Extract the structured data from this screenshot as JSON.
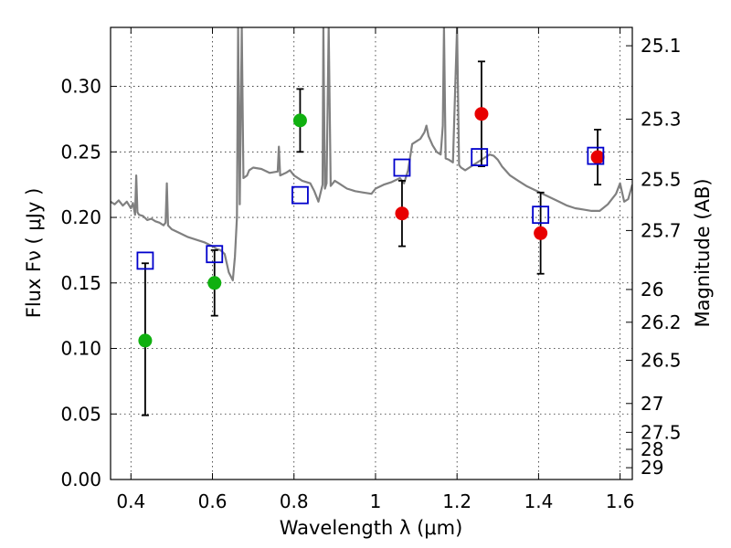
{
  "chart_data": {
    "type": "scatter",
    "xlabel": "Wavelength  λ (μm)",
    "ylabel": "Flux  Fν  ( μJy )",
    "ylabel_right": "Magnitude (AB)",
    "xlim": [
      0.35,
      1.63
    ],
    "ylim": [
      0.0,
      0.345
    ],
    "x_ticks": [
      0.4,
      0.6,
      0.8,
      1.0,
      1.2,
      1.4,
      1.6
    ],
    "x_tick_labels": [
      "0.4",
      "0.6",
      "0.8",
      "1",
      "1.2",
      "1.4",
      "1.6"
    ],
    "y_ticks": [
      0.0,
      0.05,
      0.1,
      0.15,
      0.2,
      0.25,
      0.3
    ],
    "y_tick_labels": [
      "0.00",
      "0.05",
      "0.10",
      "0.15",
      "0.20",
      "0.25",
      "0.30"
    ],
    "mag_ticks": [
      {
        "label": "25.1",
        "flux": 0.331
      },
      {
        "label": "25.3",
        "flux": 0.275
      },
      {
        "label": "25.5",
        "flux": 0.229
      },
      {
        "label": "25.7",
        "flux": 0.19
      },
      {
        "label": "26",
        "flux": 0.145
      },
      {
        "label": "26.2",
        "flux": 0.12
      },
      {
        "label": "26.5",
        "flux": 0.091
      },
      {
        "label": "27",
        "flux": 0.058
      },
      {
        "label": "27.5",
        "flux": 0.036
      },
      {
        "label": "28",
        "flux": 0.023
      },
      {
        "label": "29",
        "flux": 0.009
      }
    ],
    "grid": true,
    "colors": {
      "model": "#808080",
      "green": "#10b010",
      "red": "#e80000",
      "square": "#0000cc",
      "errorbar": "#000000"
    },
    "series": [
      {
        "name": "green-detections",
        "marker": "circle",
        "color": "green",
        "points": [
          {
            "x": 0.435,
            "y": 0.106,
            "yerr_lo": 0.049,
            "yerr_hi": 0.165
          },
          {
            "x": 0.605,
            "y": 0.15,
            "yerr_lo": 0.125,
            "yerr_hi": 0.175
          },
          {
            "x": 0.815,
            "y": 0.274,
            "yerr_lo": 0.25,
            "yerr_hi": 0.298
          }
        ]
      },
      {
        "name": "red-detections",
        "marker": "circle",
        "color": "red",
        "points": [
          {
            "x": 1.065,
            "y": 0.203,
            "yerr_lo": 0.178,
            "yerr_hi": 0.228
          },
          {
            "x": 1.26,
            "y": 0.279,
            "yerr_lo": 0.239,
            "yerr_hi": 0.319
          },
          {
            "x": 1.405,
            "y": 0.188,
            "yerr_lo": 0.157,
            "yerr_hi": 0.219
          },
          {
            "x": 1.545,
            "y": 0.246,
            "yerr_lo": 0.225,
            "yerr_hi": 0.267
          }
        ]
      },
      {
        "name": "model-photometry",
        "marker": "square",
        "color": "square",
        "points": [
          {
            "x": 0.435,
            "y": 0.167
          },
          {
            "x": 0.605,
            "y": 0.172
          },
          {
            "x": 0.815,
            "y": 0.217
          },
          {
            "x": 1.065,
            "y": 0.238
          },
          {
            "x": 1.255,
            "y": 0.246
          },
          {
            "x": 1.405,
            "y": 0.202
          },
          {
            "x": 1.54,
            "y": 0.247
          }
        ]
      }
    ],
    "model_spectrum": [
      [
        0.35,
        0.212
      ],
      [
        0.36,
        0.21
      ],
      [
        0.37,
        0.213
      ],
      [
        0.38,
        0.209
      ],
      [
        0.39,
        0.212
      ],
      [
        0.4,
        0.207
      ],
      [
        0.405,
        0.211
      ],
      [
        0.41,
        0.202
      ],
      [
        0.413,
        0.232
      ],
      [
        0.416,
        0.204
      ],
      [
        0.42,
        0.202
      ],
      [
        0.43,
        0.201
      ],
      [
        0.44,
        0.198
      ],
      [
        0.45,
        0.199
      ],
      [
        0.46,
        0.197
      ],
      [
        0.47,
        0.196
      ],
      [
        0.48,
        0.194
      ],
      [
        0.485,
        0.196
      ],
      [
        0.488,
        0.226
      ],
      [
        0.491,
        0.194
      ],
      [
        0.5,
        0.191
      ],
      [
        0.52,
        0.188
      ],
      [
        0.54,
        0.185
      ],
      [
        0.56,
        0.183
      ],
      [
        0.58,
        0.181
      ],
      [
        0.6,
        0.178
      ],
      [
        0.61,
        0.176
      ],
      [
        0.62,
        0.175
      ],
      [
        0.63,
        0.172
      ],
      [
        0.64,
        0.158
      ],
      [
        0.65,
        0.152
      ],
      [
        0.655,
        0.17
      ],
      [
        0.66,
        0.2
      ],
      [
        0.663,
        0.345
      ],
      [
        0.667,
        0.21
      ],
      [
        0.672,
        0.345
      ],
      [
        0.676,
        0.23
      ],
      [
        0.685,
        0.232
      ],
      [
        0.69,
        0.236
      ],
      [
        0.7,
        0.238
      ],
      [
        0.72,
        0.237
      ],
      [
        0.74,
        0.234
      ],
      [
        0.76,
        0.235
      ],
      [
        0.763,
        0.254
      ],
      [
        0.766,
        0.232
      ],
      [
        0.78,
        0.234
      ],
      [
        0.79,
        0.236
      ],
      [
        0.8,
        0.232
      ],
      [
        0.82,
        0.228
      ],
      [
        0.84,
        0.226
      ],
      [
        0.85,
        0.22
      ],
      [
        0.86,
        0.212
      ],
      [
        0.87,
        0.225
      ],
      [
        0.872,
        0.345
      ],
      [
        0.876,
        0.222
      ],
      [
        0.88,
        0.226
      ],
      [
        0.885,
        0.345
      ],
      [
        0.89,
        0.224
      ],
      [
        0.9,
        0.228
      ],
      [
        0.91,
        0.226
      ],
      [
        0.93,
        0.222
      ],
      [
        0.95,
        0.22
      ],
      [
        0.97,
        0.219
      ],
      [
        0.99,
        0.218
      ],
      [
        1.0,
        0.222
      ],
      [
        1.02,
        0.225
      ],
      [
        1.04,
        0.227
      ],
      [
        1.06,
        0.23
      ],
      [
        1.07,
        0.226
      ],
      [
        1.08,
        0.236
      ],
      [
        1.09,
        0.256
      ],
      [
        1.1,
        0.258
      ],
      [
        1.11,
        0.26
      ],
      [
        1.12,
        0.265
      ],
      [
        1.125,
        0.27
      ],
      [
        1.13,
        0.262
      ],
      [
        1.14,
        0.255
      ],
      [
        1.15,
        0.25
      ],
      [
        1.16,
        0.248
      ],
      [
        1.165,
        0.27
      ],
      [
        1.168,
        0.345
      ],
      [
        1.172,
        0.245
      ],
      [
        1.18,
        0.244
      ],
      [
        1.19,
        0.242
      ],
      [
        1.2,
        0.345
      ],
      [
        1.205,
        0.24
      ],
      [
        1.21,
        0.238
      ],
      [
        1.22,
        0.236
      ],
      [
        1.23,
        0.238
      ],
      [
        1.24,
        0.24
      ],
      [
        1.25,
        0.242
      ],
      [
        1.26,
        0.244
      ],
      [
        1.27,
        0.246
      ],
      [
        1.28,
        0.248
      ],
      [
        1.29,
        0.247
      ],
      [
        1.3,
        0.244
      ],
      [
        1.31,
        0.239
      ],
      [
        1.33,
        0.232
      ],
      [
        1.35,
        0.228
      ],
      [
        1.37,
        0.224
      ],
      [
        1.39,
        0.221
      ],
      [
        1.41,
        0.218
      ],
      [
        1.43,
        0.215
      ],
      [
        1.45,
        0.212
      ],
      [
        1.47,
        0.209
      ],
      [
        1.49,
        0.207
      ],
      [
        1.51,
        0.206
      ],
      [
        1.53,
        0.205
      ],
      [
        1.55,
        0.205
      ],
      [
        1.57,
        0.21
      ],
      [
        1.59,
        0.218
      ],
      [
        1.6,
        0.226
      ],
      [
        1.61,
        0.212
      ],
      [
        1.62,
        0.214
      ],
      [
        1.63,
        0.225
      ]
    ]
  }
}
